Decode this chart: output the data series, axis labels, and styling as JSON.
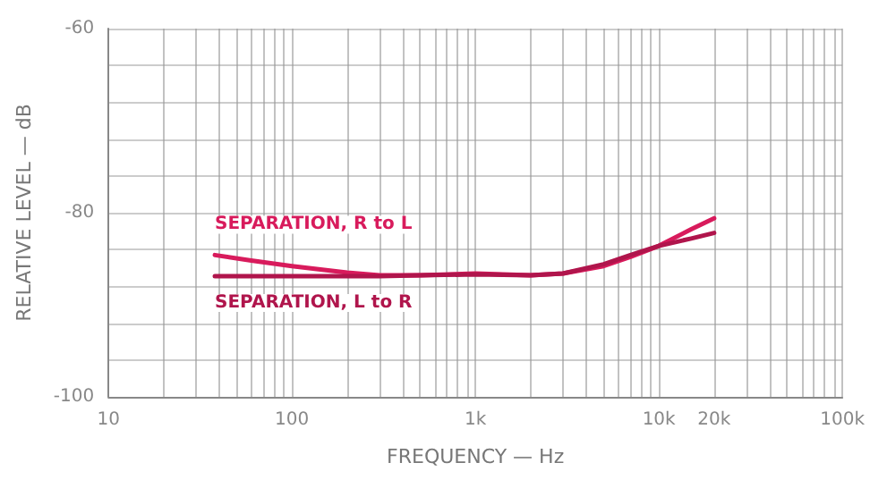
{
  "chart_data": {
    "type": "line",
    "xlabel": "FREQUENCY — Hz",
    "ylabel": "RELATIVE LEVEL — dB",
    "log": "x",
    "grid": true,
    "legend": false,
    "marker": "none",
    "line_style": "solid",
    "xlim": [
      10,
      100000
    ],
    "xticks": [
      {
        "value": 10,
        "label": "10"
      },
      {
        "value": 20,
        "label": null
      },
      {
        "value": 30,
        "label": null
      },
      {
        "value": 40,
        "label": null
      },
      {
        "value": 50,
        "label": null
      },
      {
        "value": 60,
        "label": null
      },
      {
        "value": 70,
        "label": null
      },
      {
        "value": 80,
        "label": null
      },
      {
        "value": 90,
        "label": null
      },
      {
        "value": 100,
        "label": "100"
      },
      {
        "value": 200,
        "label": null
      },
      {
        "value": 300,
        "label": null
      },
      {
        "value": 400,
        "label": null
      },
      {
        "value": 500,
        "label": null
      },
      {
        "value": 600,
        "label": null
      },
      {
        "value": 700,
        "label": null
      },
      {
        "value": 800,
        "label": null
      },
      {
        "value": 900,
        "label": null
      },
      {
        "value": 1000,
        "label": "1k"
      },
      {
        "value": 2000,
        "label": null
      },
      {
        "value": 3000,
        "label": null
      },
      {
        "value": 4000,
        "label": null
      },
      {
        "value": 5000,
        "label": null
      },
      {
        "value": 6000,
        "label": null
      },
      {
        "value": 7000,
        "label": null
      },
      {
        "value": 8000,
        "label": null
      },
      {
        "value": 9000,
        "label": null
      },
      {
        "value": 10000,
        "label": "10k"
      },
      {
        "value": 20000,
        "label": "20k"
      },
      {
        "value": 30000,
        "label": null
      },
      {
        "value": 40000,
        "label": null
      },
      {
        "value": 50000,
        "label": null
      },
      {
        "value": 60000,
        "label": null
      },
      {
        "value": 70000,
        "label": null
      },
      {
        "value": 80000,
        "label": null
      },
      {
        "value": 90000,
        "label": null
      },
      {
        "value": 100000,
        "label": "100k"
      }
    ],
    "ylim": [
      -100,
      -60
    ],
    "yticks": [
      -100,
      {
        "value": -96,
        "label": null
      },
      {
        "value": -92,
        "label": null
      },
      {
        "value": -88,
        "label": null
      },
      {
        "value": -84,
        "label": null
      },
      -80,
      {
        "value": -76,
        "label": null
      },
      {
        "value": -72,
        "label": null
      },
      {
        "value": -68,
        "label": null
      },
      {
        "value": -64,
        "label": null
      },
      -60
    ],
    "series": [
      {
        "name": "SEPARATION, R to L",
        "color": "#d81b5c",
        "x": [
          38,
          60,
          100,
          200,
          300,
          500,
          1000,
          2000,
          3000,
          5000,
          7000,
          10000,
          15000,
          20000
        ],
        "values": [
          -84.6,
          -85.2,
          -85.8,
          -86.5,
          -86.8,
          -86.8,
          -86.6,
          -86.8,
          -86.6,
          -85.8,
          -84.8,
          -83.6,
          -81.8,
          -80.6
        ]
      },
      {
        "name": "SEPARATION, L to R",
        "color": "#b0154c",
        "x": [
          38,
          60,
          100,
          200,
          300,
          500,
          1000,
          2000,
          3000,
          5000,
          7000,
          10000,
          15000,
          20000
        ],
        "values": [
          -86.9,
          -86.9,
          -86.9,
          -86.9,
          -86.9,
          -86.8,
          -86.7,
          -86.8,
          -86.6,
          -85.6,
          -84.6,
          -83.6,
          -82.8,
          -82.2
        ]
      }
    ]
  }
}
